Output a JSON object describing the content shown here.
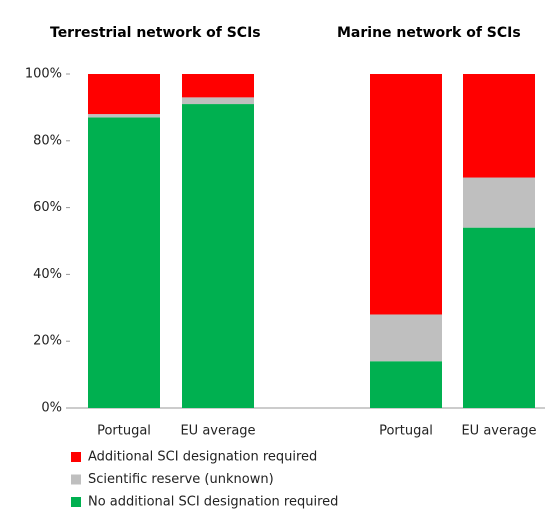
{
  "chart_data": {
    "type": "stacked_bar",
    "group_titles": [
      "Terrestrial network of SCIs",
      "Marine network of SCIs"
    ],
    "categories": [
      "Portugal",
      "EU average",
      "Portugal",
      "EU average"
    ],
    "series": [
      {
        "name": "No additional SCI designation required",
        "color": "#00b050",
        "values": [
          87,
          91,
          14,
          54
        ]
      },
      {
        "name": "Scientific reserve (unknown)",
        "color": "#bfbfbf",
        "values": [
          1,
          2,
          14,
          15
        ]
      },
      {
        "name": "Additional SCI designation required",
        "color": "#ff0000",
        "values": [
          12,
          7,
          72,
          31
        ]
      }
    ],
    "ylim": [
      0,
      100
    ],
    "yticks": [
      {
        "value": 0,
        "label": "0%"
      },
      {
        "value": 20,
        "label": "20%"
      },
      {
        "value": 40,
        "label": "40%"
      },
      {
        "value": 60,
        "label": "60%"
      },
      {
        "value": 80,
        "label": "80%"
      },
      {
        "value": 100,
        "label": "100%"
      }
    ]
  }
}
